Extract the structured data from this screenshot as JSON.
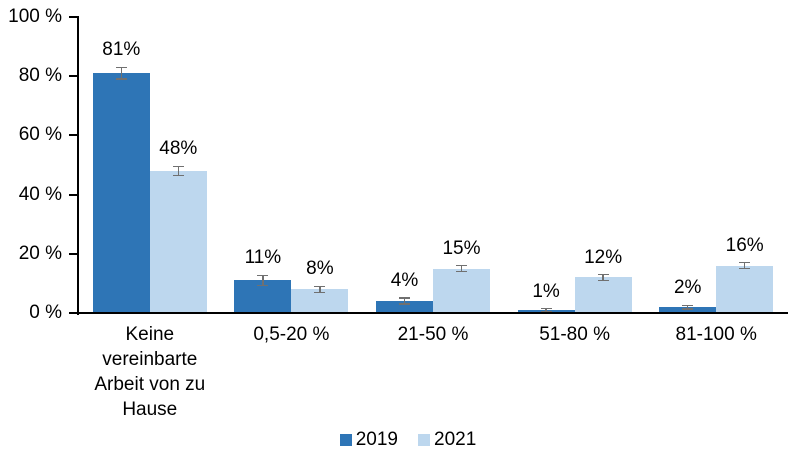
{
  "chart_data": {
    "type": "bar",
    "title": "",
    "xlabel": "",
    "ylabel": "",
    "grid": false,
    "background": "#ffffff",
    "axis_color": "#000000",
    "text_color": "#000000",
    "error_bar_color": "#707070",
    "categories": [
      "Keine vereinbarte Arbeit von zu Hause",
      "0,5-20 %",
      "21-50 %",
      "51-80 %",
      "81-100 %"
    ],
    "series": [
      {
        "name": "2019",
        "color": "#2E75B6",
        "values": [
          81,
          11,
          4,
          1,
          2
        ],
        "labels": [
          "81%",
          "11%",
          "4%",
          "1%",
          "2%"
        ],
        "errors": [
          2,
          1.7,
          1,
          0.5,
          0.6
        ]
      },
      {
        "name": "2021",
        "color": "#BDD7EE",
        "values": [
          48,
          8,
          15,
          12,
          16
        ],
        "labels": [
          "48%",
          "8%",
          "15%",
          "12%",
          "16%"
        ],
        "errors": [
          1.5,
          1,
          1,
          1,
          1
        ]
      }
    ],
    "y_axis": {
      "ylim": [
        0,
        100
      ],
      "ticks": [
        {
          "value": 0,
          "label": "0 %"
        },
        {
          "value": 20,
          "label": "20 %"
        },
        {
          "value": 40,
          "label": "40 %"
        },
        {
          "value": 60,
          "label": "60 %"
        },
        {
          "value": 80,
          "label": "80 %"
        },
        {
          "value": 100,
          "label": "100 %"
        }
      ]
    },
    "legend": {
      "position": "bottom",
      "entries": [
        {
          "label": "2019",
          "color": "#2E75B6"
        },
        {
          "label": "2021",
          "color": "#BDD7EE"
        }
      ]
    }
  }
}
